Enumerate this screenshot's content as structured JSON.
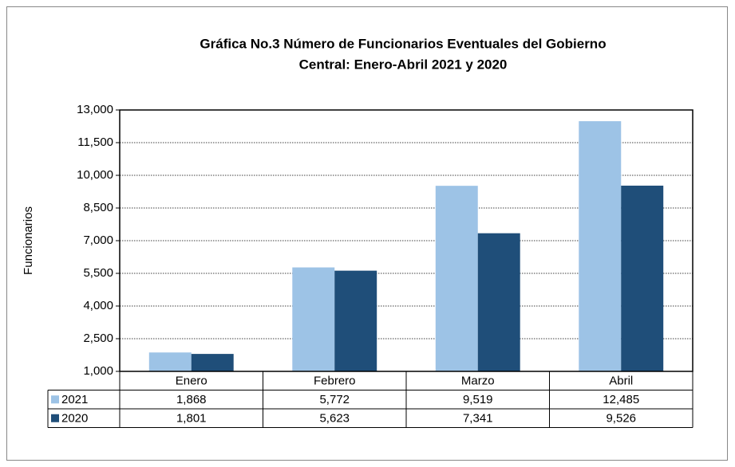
{
  "chart_data": {
    "type": "bar",
    "title": [
      "Gráfica No.3 Número de Funcionarios Eventuales del Gobierno",
      "Central: Enero-Abril 2021 y 2020"
    ],
    "y_label": "Funcionarios",
    "categories": [
      "Enero",
      "Febrero",
      "Marzo",
      "Abril"
    ],
    "series": [
      {
        "name": "2021",
        "color": "#9dc3e6",
        "values": [
          1868,
          5772,
          9519,
          12485
        ],
        "value_labels": [
          "1,868",
          "5,772",
          "9,519",
          "12,485"
        ]
      },
      {
        "name": "2020",
        "color": "#1f4e79",
        "values": [
          1801,
          5623,
          7341,
          9526
        ],
        "value_labels": [
          "1,801",
          "5,623",
          "7,341",
          "9,526"
        ]
      }
    ],
    "ylim": [
      1000,
      13000
    ],
    "yticks": [
      {
        "value": 1000,
        "label": "1,000"
      },
      {
        "value": 2500,
        "label": "2,500"
      },
      {
        "value": 4000,
        "label": "4,000"
      },
      {
        "value": 5500,
        "label": "5,500"
      },
      {
        "value": 7000,
        "label": "7,000"
      },
      {
        "value": 8500,
        "label": "8,500"
      },
      {
        "value": 10000,
        "label": "10,000"
      },
      {
        "value": 11500,
        "label": "11,500"
      },
      {
        "value": 13000,
        "label": "13,000"
      }
    ],
    "grid": true
  }
}
